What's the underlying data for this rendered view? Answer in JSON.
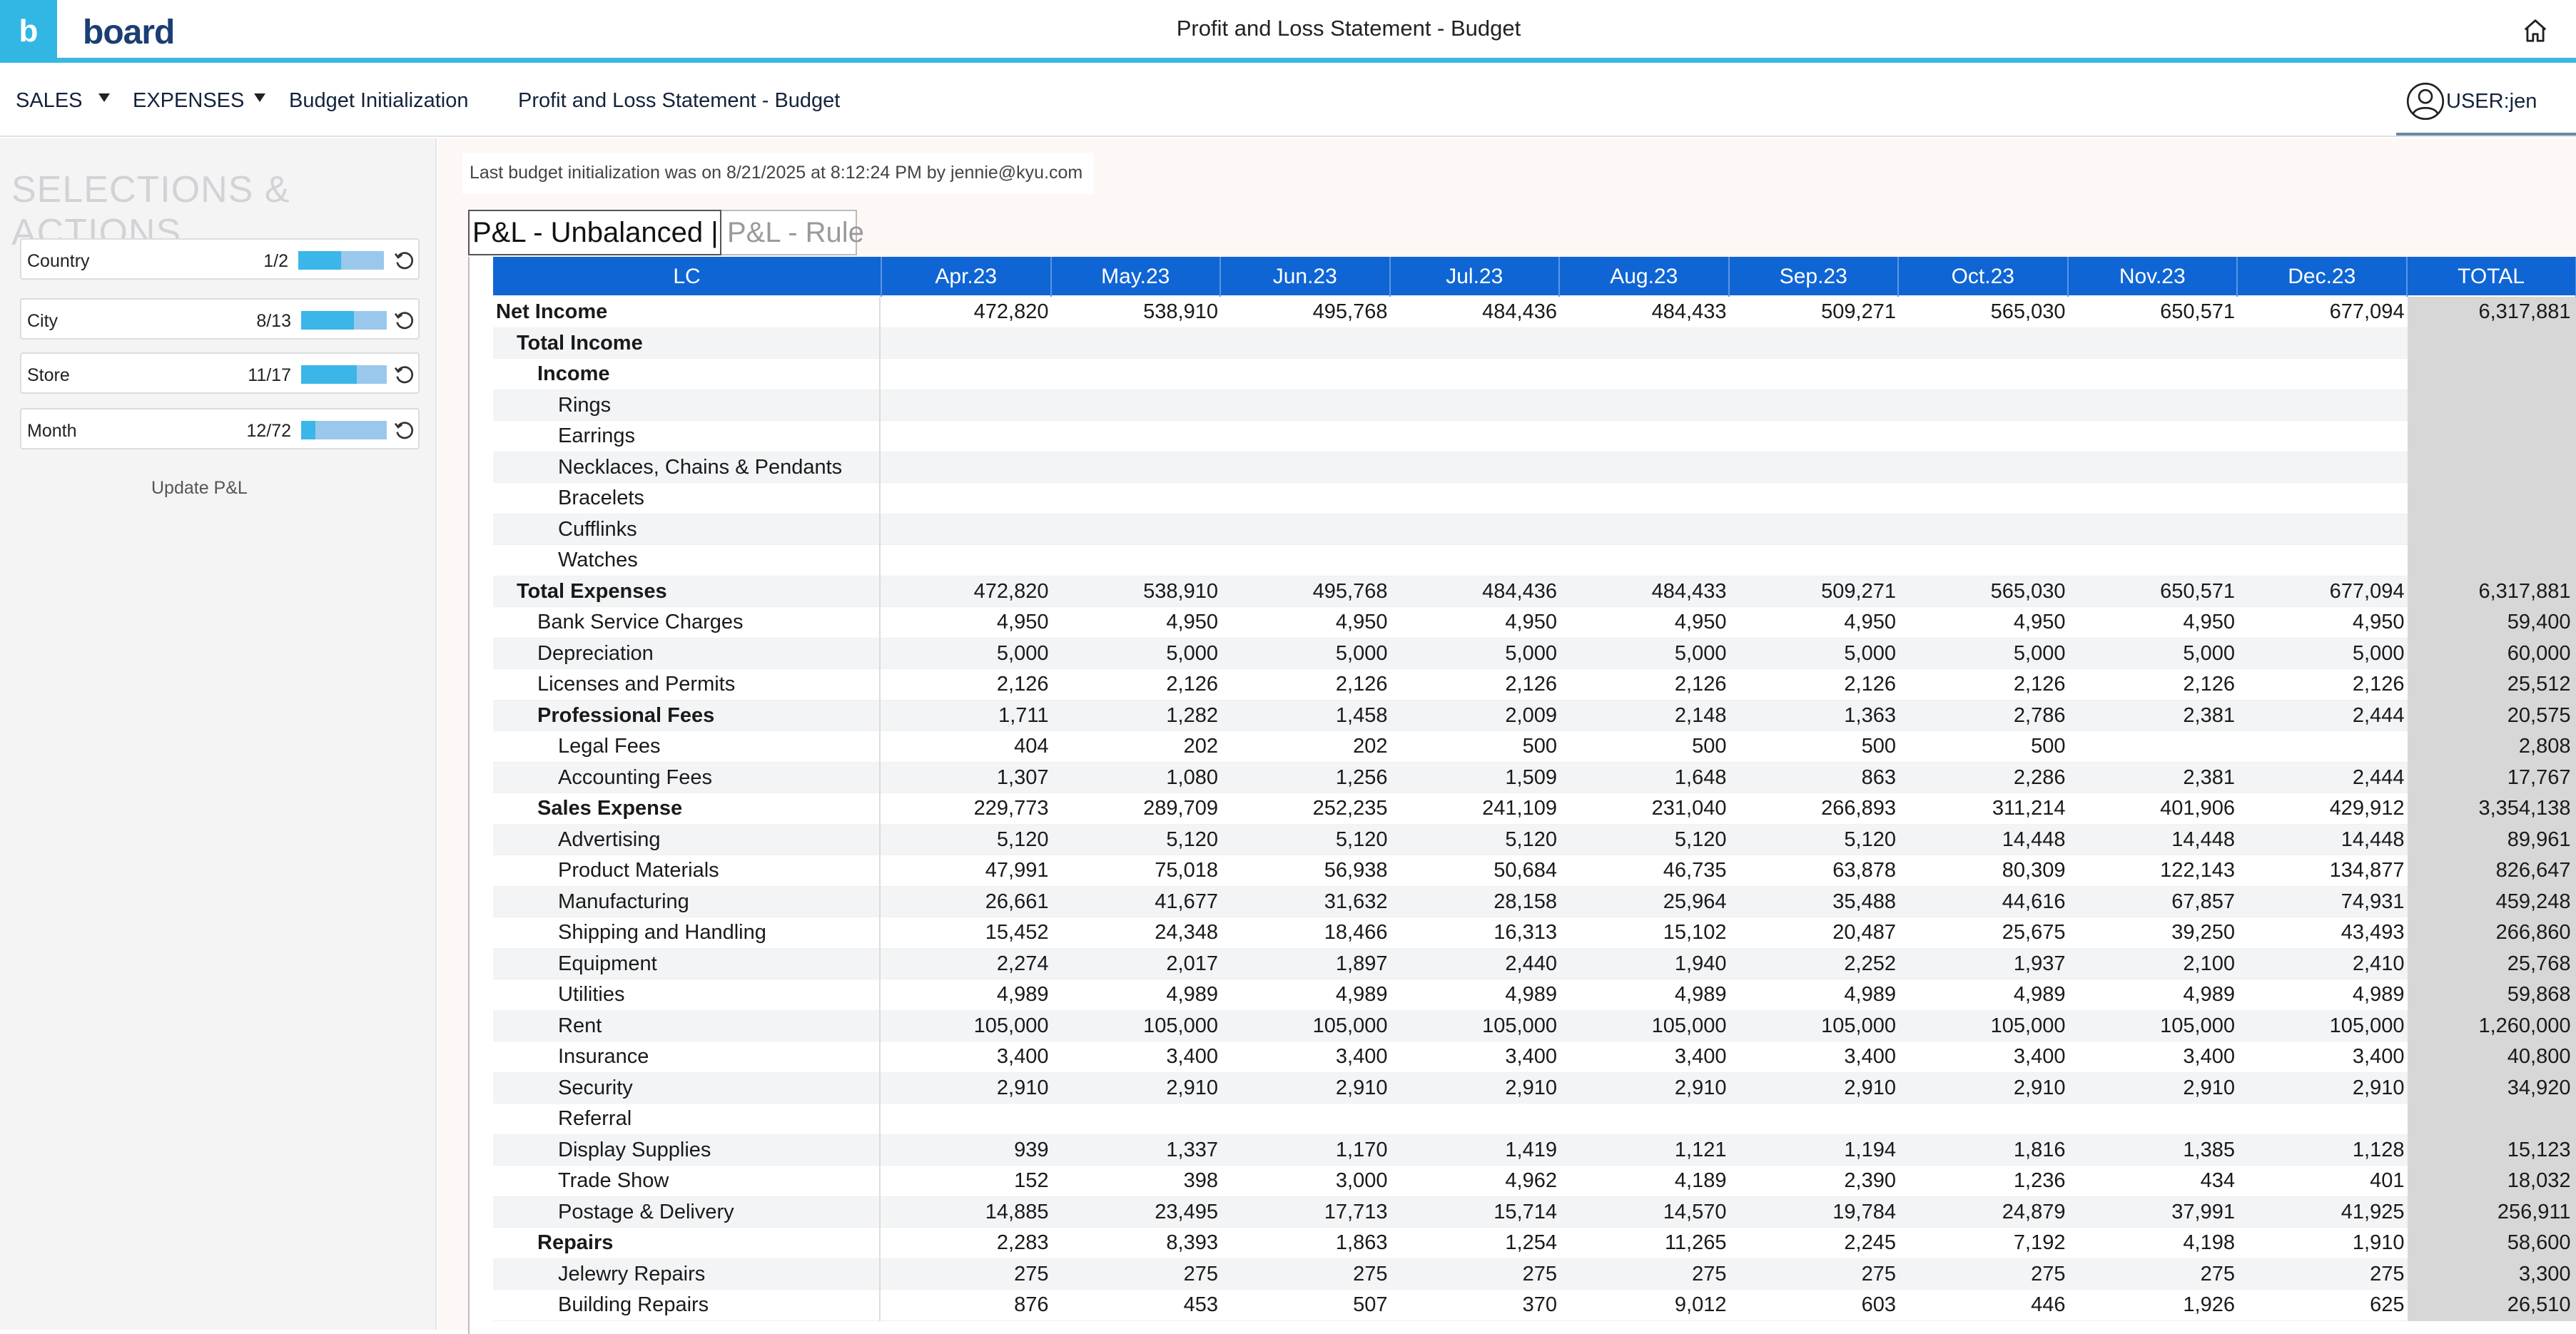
{
  "app": {
    "logo_letter": "b",
    "logo_text": "board",
    "page_title": "Profit and Loss Statement - Budget",
    "accent_color": "#32b6e4",
    "header_blue": "#0f65d4"
  },
  "nav": {
    "items": [
      {
        "label": "SALES",
        "has_menu": true
      },
      {
        "label": "EXPENSES",
        "has_menu": true
      },
      {
        "label": "Budget Initialization",
        "has_menu": false
      },
      {
        "label": "Profit and Loss Statement - Budget",
        "has_menu": false
      }
    ],
    "user_label": "USER:jen"
  },
  "selections": {
    "heading": "SELECTIONS & ACTIONS",
    "items": [
      {
        "label": "Country",
        "count": "1/2",
        "fraction": 0.5
      },
      {
        "label": "City",
        "count": "8/13",
        "fraction": 0.615
      },
      {
        "label": "Store",
        "count": "11/17",
        "fraction": 0.647
      },
      {
        "label": "Month",
        "count": "12/72",
        "fraction": 0.167
      }
    ],
    "update_button": "Update P&L"
  },
  "info": {
    "text": "Last budget initialization was on 8/21/2025 at 8:12:24 PM by jennie@kyu.com"
  },
  "tabs": [
    {
      "label": "P&L - Unbalanced |",
      "active": true
    },
    {
      "label": "P&L - Rule",
      "active": false
    }
  ],
  "table": {
    "row_header": "LC",
    "columns": [
      "Apr.23",
      "May.23",
      "Jun.23",
      "Jul.23",
      "Aug.23",
      "Sep.23",
      "Oct.23",
      "Nov.23",
      "Dec.23",
      "TOTAL"
    ],
    "rows": [
      {
        "label": "Net Income",
        "level": 0,
        "bold": true,
        "values": [
          "472,820",
          "538,910",
          "495,768",
          "484,436",
          "484,433",
          "509,271",
          "565,030",
          "650,571",
          "677,094",
          "6,317,881"
        ]
      },
      {
        "label": "Total Income",
        "level": 1,
        "bold": true,
        "values": [
          "",
          "",
          "",
          "",
          "",
          "",
          "",
          "",
          "",
          ""
        ]
      },
      {
        "label": "Income",
        "level": 2,
        "bold": true,
        "values": [
          "",
          "",
          "",
          "",
          "",
          "",
          "",
          "",
          "",
          ""
        ]
      },
      {
        "label": "Rings",
        "level": 3,
        "bold": false,
        "values": [
          "",
          "",
          "",
          "",
          "",
          "",
          "",
          "",
          "",
          ""
        ]
      },
      {
        "label": "Earrings",
        "level": 3,
        "bold": false,
        "values": [
          "",
          "",
          "",
          "",
          "",
          "",
          "",
          "",
          "",
          ""
        ]
      },
      {
        "label": "Necklaces, Chains & Pendants",
        "level": 3,
        "bold": false,
        "values": [
          "",
          "",
          "",
          "",
          "",
          "",
          "",
          "",
          "",
          ""
        ]
      },
      {
        "label": "Bracelets",
        "level": 3,
        "bold": false,
        "values": [
          "",
          "",
          "",
          "",
          "",
          "",
          "",
          "",
          "",
          ""
        ]
      },
      {
        "label": "Cufflinks",
        "level": 3,
        "bold": false,
        "values": [
          "",
          "",
          "",
          "",
          "",
          "",
          "",
          "",
          "",
          ""
        ]
      },
      {
        "label": "Watches",
        "level": 3,
        "bold": false,
        "values": [
          "",
          "",
          "",
          "",
          "",
          "",
          "",
          "",
          "",
          ""
        ]
      },
      {
        "label": "Total Expenses",
        "level": 1,
        "bold": true,
        "values": [
          "472,820",
          "538,910",
          "495,768",
          "484,436",
          "484,433",
          "509,271",
          "565,030",
          "650,571",
          "677,094",
          "6,317,881"
        ]
      },
      {
        "label": "Bank Service Charges",
        "level": 2,
        "bold": false,
        "values": [
          "4,950",
          "4,950",
          "4,950",
          "4,950",
          "4,950",
          "4,950",
          "4,950",
          "4,950",
          "4,950",
          "59,400"
        ]
      },
      {
        "label": "Depreciation",
        "level": 2,
        "bold": false,
        "values": [
          "5,000",
          "5,000",
          "5,000",
          "5,000",
          "5,000",
          "5,000",
          "5,000",
          "5,000",
          "5,000",
          "60,000"
        ]
      },
      {
        "label": "Licenses and Permits",
        "level": 2,
        "bold": false,
        "values": [
          "2,126",
          "2,126",
          "2,126",
          "2,126",
          "2,126",
          "2,126",
          "2,126",
          "2,126",
          "2,126",
          "25,512"
        ]
      },
      {
        "label": "Professional Fees",
        "level": 2,
        "bold": true,
        "values": [
          "1,711",
          "1,282",
          "1,458",
          "2,009",
          "2,148",
          "1,363",
          "2,786",
          "2,381",
          "2,444",
          "20,575"
        ]
      },
      {
        "label": "Legal Fees",
        "level": 3,
        "bold": false,
        "values": [
          "404",
          "202",
          "202",
          "500",
          "500",
          "500",
          "500",
          "",
          "",
          "2,808"
        ]
      },
      {
        "label": "Accounting Fees",
        "level": 3,
        "bold": false,
        "values": [
          "1,307",
          "1,080",
          "1,256",
          "1,509",
          "1,648",
          "863",
          "2,286",
          "2,381",
          "2,444",
          "17,767"
        ]
      },
      {
        "label": "Sales Expense",
        "level": 2,
        "bold": true,
        "values": [
          "229,773",
          "289,709",
          "252,235",
          "241,109",
          "231,040",
          "266,893",
          "311,214",
          "401,906",
          "429,912",
          "3,354,138"
        ]
      },
      {
        "label": "Advertising",
        "level": 3,
        "bold": false,
        "values": [
          "5,120",
          "5,120",
          "5,120",
          "5,120",
          "5,120",
          "5,120",
          "14,448",
          "14,448",
          "14,448",
          "89,961"
        ]
      },
      {
        "label": "Product Materials",
        "level": 3,
        "bold": false,
        "values": [
          "47,991",
          "75,018",
          "56,938",
          "50,684",
          "46,735",
          "63,878",
          "80,309",
          "122,143",
          "134,877",
          "826,647"
        ]
      },
      {
        "label": "Manufacturing",
        "level": 3,
        "bold": false,
        "values": [
          "26,661",
          "41,677",
          "31,632",
          "28,158",
          "25,964",
          "35,488",
          "44,616",
          "67,857",
          "74,931",
          "459,248"
        ]
      },
      {
        "label": "Shipping and Handling",
        "level": 3,
        "bold": false,
        "values": [
          "15,452",
          "24,348",
          "18,466",
          "16,313",
          "15,102",
          "20,487",
          "25,675",
          "39,250",
          "43,493",
          "266,860"
        ]
      },
      {
        "label": "Equipment",
        "level": 3,
        "bold": false,
        "values": [
          "2,274",
          "2,017",
          "1,897",
          "2,440",
          "1,940",
          "2,252",
          "1,937",
          "2,100",
          "2,410",
          "25,768"
        ]
      },
      {
        "label": "Utilities",
        "level": 3,
        "bold": false,
        "values": [
          "4,989",
          "4,989",
          "4,989",
          "4,989",
          "4,989",
          "4,989",
          "4,989",
          "4,989",
          "4,989",
          "59,868"
        ]
      },
      {
        "label": "Rent",
        "level": 3,
        "bold": false,
        "values": [
          "105,000",
          "105,000",
          "105,000",
          "105,000",
          "105,000",
          "105,000",
          "105,000",
          "105,000",
          "105,000",
          "1,260,000"
        ]
      },
      {
        "label": "Insurance",
        "level": 3,
        "bold": false,
        "values": [
          "3,400",
          "3,400",
          "3,400",
          "3,400",
          "3,400",
          "3,400",
          "3,400",
          "3,400",
          "3,400",
          "40,800"
        ]
      },
      {
        "label": "Security",
        "level": 3,
        "bold": false,
        "values": [
          "2,910",
          "2,910",
          "2,910",
          "2,910",
          "2,910",
          "2,910",
          "2,910",
          "2,910",
          "2,910",
          "34,920"
        ]
      },
      {
        "label": "Referral",
        "level": 3,
        "bold": false,
        "values": [
          "",
          "",
          "",
          "",
          "",
          "",
          "",
          "",
          "",
          ""
        ]
      },
      {
        "label": "Display Supplies",
        "level": 3,
        "bold": false,
        "values": [
          "939",
          "1,337",
          "1,170",
          "1,419",
          "1,121",
          "1,194",
          "1,816",
          "1,385",
          "1,128",
          "15,123"
        ]
      },
      {
        "label": "Trade Show",
        "level": 3,
        "bold": false,
        "values": [
          "152",
          "398",
          "3,000",
          "4,962",
          "4,189",
          "2,390",
          "1,236",
          "434",
          "401",
          "18,032"
        ]
      },
      {
        "label": "Postage & Delivery",
        "level": 3,
        "bold": false,
        "values": [
          "14,885",
          "23,495",
          "17,713",
          "15,714",
          "14,570",
          "19,784",
          "24,879",
          "37,991",
          "41,925",
          "256,911"
        ]
      },
      {
        "label": "Repairs",
        "level": 2,
        "bold": true,
        "values": [
          "2,283",
          "8,393",
          "1,863",
          "1,254",
          "11,265",
          "2,245",
          "7,192",
          "4,198",
          "1,910",
          "58,600"
        ]
      },
      {
        "label": "Jelewry Repairs",
        "level": 3,
        "bold": false,
        "values": [
          "275",
          "275",
          "275",
          "275",
          "275",
          "275",
          "275",
          "275",
          "275",
          "3,300"
        ]
      },
      {
        "label": "Building Repairs",
        "level": 3,
        "bold": false,
        "values": [
          "876",
          "453",
          "507",
          "370",
          "9,012",
          "603",
          "446",
          "1,926",
          "625",
          "26,510"
        ]
      }
    ]
  }
}
